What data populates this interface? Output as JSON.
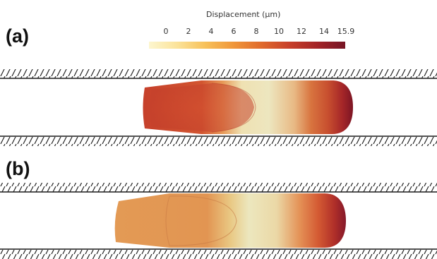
{
  "panels": [
    {
      "label": "(a)"
    },
    {
      "label": "(b)"
    }
  ],
  "colorbar": {
    "title": "Displacement (μm)",
    "ticks": [
      "0",
      "2",
      "4",
      "6",
      "8",
      "10",
      "12",
      "14",
      "15.9"
    ],
    "colors": [
      "#fdf6cf",
      "#fbe39a",
      "#f7c15a",
      "#f0973a",
      "#e06a2c",
      "#c8402a",
      "#a32427",
      "#761425"
    ]
  }
}
